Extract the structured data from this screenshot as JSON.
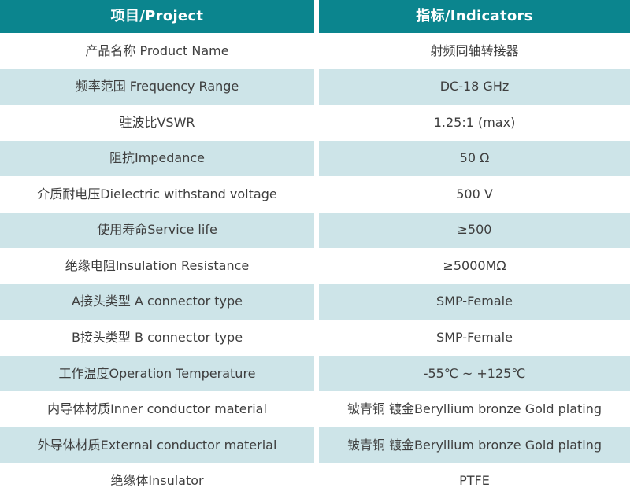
{
  "theme": {
    "header_bg": "#0b858e",
    "header_text": "#ffffff",
    "stripe_bg": "#cde4e8",
    "row_bg": "#ffffff",
    "divider": "#ffffff",
    "text": "#3e3e3e"
  },
  "table": {
    "header": {
      "project": "项目/Project",
      "indicators": "指标/Indicators"
    },
    "rows": [
      {
        "project": "产品名称 Product Name",
        "indicator": "射频同轴转接器"
      },
      {
        "project": "频率范围 Frequency Range",
        "indicator": "DC-18 GHz"
      },
      {
        "project": "驻波比VSWR",
        "indicator": "1.25:1 (max)"
      },
      {
        "project": "阻抗Impedance",
        "indicator": "50 Ω"
      },
      {
        "project": "介质耐电压Dielectric withstand voltage",
        "indicator": "500 V"
      },
      {
        "project": "使用寿命Service life",
        "indicator": "≥500"
      },
      {
        "project": "绝缘电阻Insulation Resistance",
        "indicator": "≥5000MΩ"
      },
      {
        "project": "A接头类型 A connector type",
        "indicator": "SMP-Female"
      },
      {
        "project": "B接头类型 B connector type",
        "indicator": "SMP-Female"
      },
      {
        "project": "工作温度Operation Temperature",
        "indicator": "-55℃ ~ +125℃"
      },
      {
        "project": "内导体材质Inner conductor material",
        "indicator": "铍青铜 镀金Beryllium bronze Gold plating"
      },
      {
        "project": "外导体材质External conductor material",
        "indicator": "铍青铜 镀金Beryllium bronze Gold plating"
      },
      {
        "project": "绝缘体Insulator",
        "indicator": "PTFE"
      }
    ]
  }
}
